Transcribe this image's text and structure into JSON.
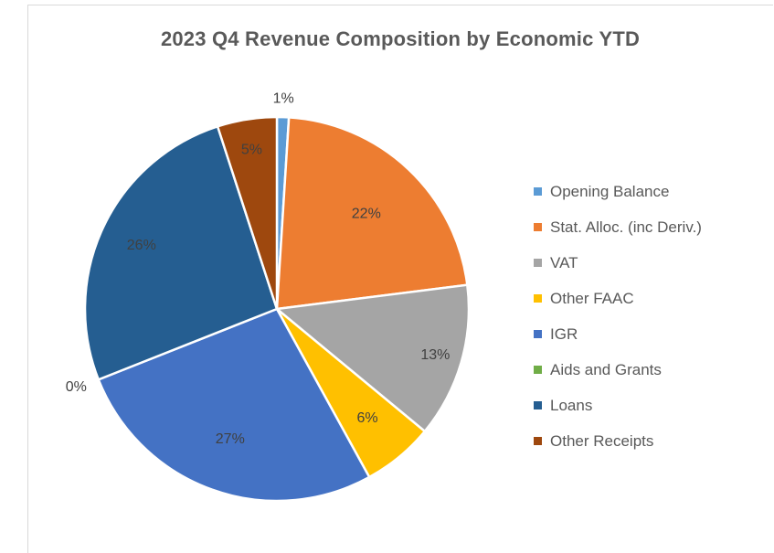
{
  "chart_data": {
    "type": "pie",
    "title": "2023 Q4 Revenue Composition by Economic YTD",
    "slices": [
      {
        "name": "Opening Balance",
        "value": 1,
        "label": "1%",
        "color": "#5b9bd5"
      },
      {
        "name": "Stat. Alloc. (inc Deriv.)",
        "value": 22,
        "label": "22%",
        "color": "#ed7d31"
      },
      {
        "name": "VAT",
        "value": 13,
        "label": "13%",
        "color": "#a5a5a5"
      },
      {
        "name": "Other FAAC",
        "value": 6,
        "label": "6%",
        "color": "#ffc000"
      },
      {
        "name": "IGR",
        "value": 27,
        "label": "27%",
        "color": "#4472c4"
      },
      {
        "name": "Aids and Grants",
        "value": 0,
        "label": "0%",
        "color": "#70ad47"
      },
      {
        "name": "Loans",
        "value": 26,
        "label": "26%",
        "color": "#255e91"
      },
      {
        "name": "Other Receipts",
        "value": 5,
        "label": "5%",
        "color": "#9e480e"
      }
    ],
    "legend_position": "right",
    "label_color": "#404040",
    "title_color": "#595959"
  }
}
